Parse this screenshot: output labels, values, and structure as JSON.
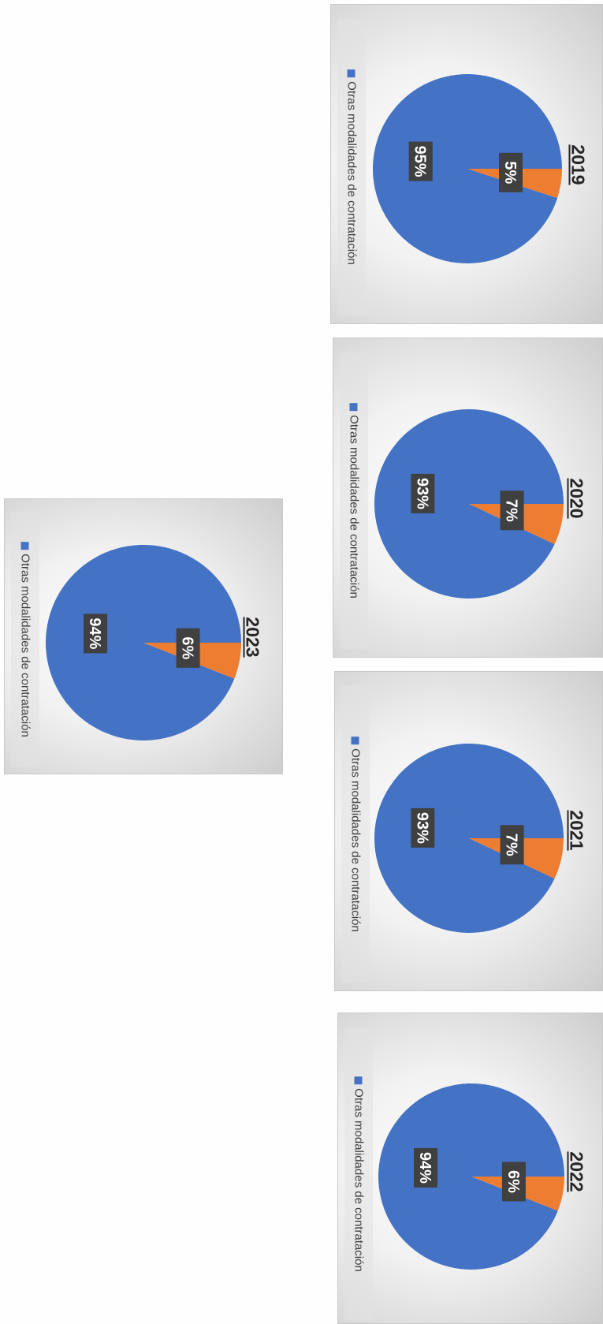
{
  "colors": {
    "otras": "#4472c4",
    "other": "#ed7d31",
    "label_bg": "#404040",
    "label_text": "#ffffff"
  },
  "legend_label": "Otras modalidades de contratación",
  "chart_data": [
    {
      "type": "pie",
      "title": "2019",
      "legend": [
        "Otras modalidades de contratación"
      ],
      "legend_position": "left",
      "series": [
        {
          "values": [
            95,
            5
          ],
          "labels": [
            "95%",
            "5%"
          ]
        }
      ]
    },
    {
      "type": "pie",
      "title": "2020",
      "legend": [
        "Otras modalidades de contratación"
      ],
      "legend_position": "left",
      "series": [
        {
          "values": [
            93,
            7
          ],
          "labels": [
            "93%",
            "7%"
          ]
        }
      ]
    },
    {
      "type": "pie",
      "title": "2021",
      "legend": [
        "Otras modalidades de contratación"
      ],
      "legend_position": "left",
      "series": [
        {
          "values": [
            93,
            7
          ],
          "labels": [
            "93%",
            "7%"
          ]
        }
      ]
    },
    {
      "type": "pie",
      "title": "2022",
      "legend": [
        "Otras modalidades de contratación"
      ],
      "legend_position": "left",
      "series": [
        {
          "values": [
            94,
            6
          ],
          "labels": [
            "94%",
            "6%"
          ]
        }
      ]
    },
    {
      "type": "pie",
      "title": "2023",
      "legend": [
        "Otras modalidades de contratación"
      ],
      "legend_position": "left",
      "series": [
        {
          "values": [
            94,
            6
          ],
          "labels": [
            "94%",
            "6%"
          ]
        }
      ]
    }
  ]
}
